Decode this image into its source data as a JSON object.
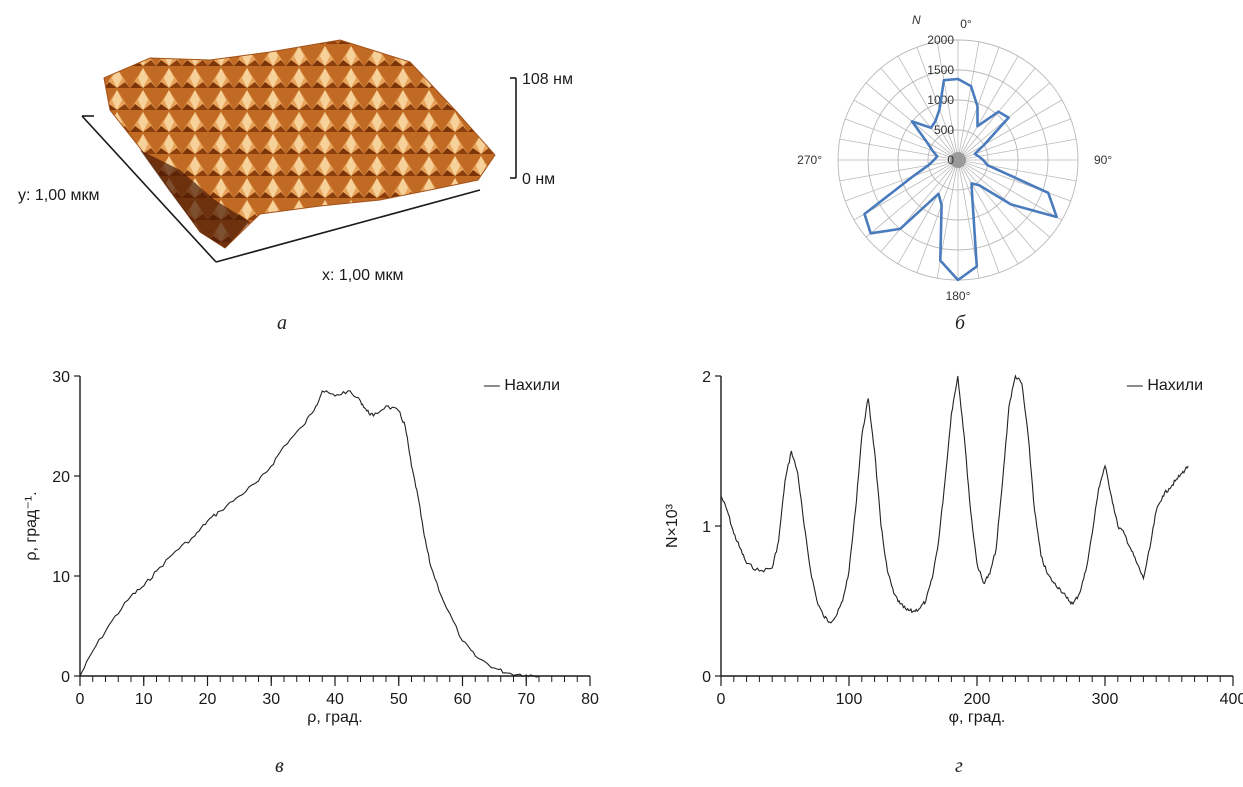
{
  "panels": {
    "a": {
      "letter": "а",
      "z_top_label": "108 нм",
      "z_bottom_label": "0 нм",
      "y_label": "y: 1,00 мкм",
      "x_label": "x: 1,00 мкм"
    },
    "b": {
      "letter": "б"
    },
    "c": {
      "letter": "в"
    },
    "d": {
      "letter": "г"
    }
  },
  "chart_data": [
    {
      "id": "polar",
      "type": "line",
      "polar": true,
      "radial_label": "N",
      "radial_ticks": [
        0,
        500,
        1000,
        1500,
        2000
      ],
      "rlim": [
        0,
        2000
      ],
      "angle_labels": [
        {
          "deg": 0,
          "text": "0°"
        },
        {
          "deg": 90,
          "text": "90°"
        },
        {
          "deg": 180,
          "text": "180°"
        },
        {
          "deg": 270,
          "text": "270°"
        }
      ],
      "series_color": "#4a7bbd",
      "angles": [
        0,
        10,
        20,
        30,
        40,
        50,
        60,
        70,
        80,
        90,
        100,
        110,
        120,
        130,
        140,
        150,
        160,
        170,
        180,
        190,
        200,
        210,
        220,
        230,
        240,
        250,
        260,
        270,
        280,
        290,
        300,
        310,
        320,
        330,
        340,
        350
      ],
      "values": [
        1350,
        1250,
        950,
        650,
        1050,
        1100,
        500,
        300,
        350,
        420,
        500,
        1600,
        1900,
        1150,
        550,
        450,
        700,
        1800,
        2000,
        1700,
        800,
        650,
        1500,
        1900,
        1800,
        800,
        500,
        400,
        350,
        450,
        600,
        1000,
        700,
        750,
        900,
        1350
      ],
      "grid": true
    },
    {
      "id": "rho",
      "type": "line",
      "xlabel": "ρ, град.",
      "ylabel": "ρ, град⁻¹.",
      "legend": "— Нахили",
      "legend_position": "top-right",
      "xlim": [
        0,
        80
      ],
      "ylim": [
        0,
        30
      ],
      "xticks": [
        0,
        10,
        20,
        30,
        40,
        50,
        60,
        70,
        80
      ],
      "yticks": [
        0,
        10,
        20,
        30
      ],
      "x": [
        0,
        2,
        5,
        8,
        10,
        12,
        15,
        18,
        20,
        22,
        25,
        28,
        30,
        32,
        35,
        37,
        38,
        40,
        42,
        44,
        45,
        46,
        48,
        50,
        51,
        52,
        53,
        54,
        55,
        57,
        60,
        62,
        65,
        67,
        70,
        72
      ],
      "y": [
        0,
        2.5,
        5.5,
        8,
        9,
        10.5,
        12.5,
        14,
        15.5,
        16.5,
        18,
        19.5,
        21,
        23,
        25,
        27,
        28.5,
        28,
        28.5,
        27.5,
        26.5,
        26,
        27,
        26.5,
        25,
        21,
        18,
        14,
        11,
        7.5,
        3.5,
        2,
        0.8,
        0.3,
        0.1,
        0
      ],
      "grid": false
    },
    {
      "id": "phi",
      "type": "line",
      "xlabel": "φ, град.",
      "ylabel": "N×10³",
      "legend": "— Нахили",
      "legend_position": "top-right",
      "xlim": [
        0,
        400
      ],
      "ylim": [
        0,
        2
      ],
      "xticks": [
        0,
        100,
        200,
        300,
        400
      ],
      "yticks": [
        0,
        1,
        2
      ],
      "x": [
        0,
        5,
        10,
        15,
        20,
        30,
        40,
        45,
        50,
        55,
        60,
        65,
        70,
        75,
        80,
        85,
        90,
        95,
        100,
        105,
        110,
        115,
        120,
        125,
        130,
        135,
        140,
        145,
        150,
        155,
        160,
        165,
        170,
        175,
        180,
        185,
        190,
        195,
        200,
        205,
        210,
        215,
        220,
        225,
        230,
        235,
        240,
        245,
        250,
        255,
        260,
        265,
        270,
        275,
        280,
        285,
        290,
        295,
        300,
        305,
        310,
        315,
        320,
        325,
        330,
        335,
        340,
        345,
        350,
        355,
        360,
        365
      ],
      "y": [
        1.2,
        1.1,
        0.95,
        0.85,
        0.75,
        0.7,
        0.72,
        0.9,
        1.3,
        1.5,
        1.35,
        1.0,
        0.7,
        0.5,
        0.4,
        0.36,
        0.4,
        0.5,
        0.7,
        1.1,
        1.6,
        1.85,
        1.5,
        1.0,
        0.7,
        0.55,
        0.48,
        0.44,
        0.43,
        0.45,
        0.5,
        0.65,
        0.9,
        1.3,
        1.75,
        2.0,
        1.6,
        1.1,
        0.75,
        0.62,
        0.68,
        0.85,
        1.3,
        1.8,
        2.0,
        1.95,
        1.6,
        1.1,
        0.8,
        0.68,
        0.62,
        0.58,
        0.52,
        0.48,
        0.55,
        0.7,
        0.95,
        1.25,
        1.4,
        1.2,
        1.0,
        0.95,
        0.85,
        0.75,
        0.65,
        0.85,
        1.1,
        1.2,
        1.25,
        1.3,
        1.35,
        1.4
      ],
      "grid": false
    }
  ]
}
